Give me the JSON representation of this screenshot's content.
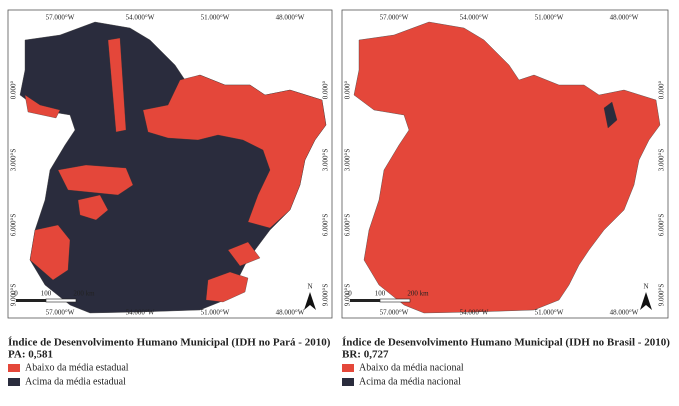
{
  "maps": [
    {
      "top_labels": [
        "57.000°W",
        "54.000°W",
        "51.000°W",
        "48.000°W"
      ],
      "bottom_labels": [
        "57.000°W",
        "54.000°W",
        "51.000°W",
        "48.000°W"
      ],
      "left_labels": [
        "0.000°",
        "3.000°S",
        "6.000°S",
        "9.000°S"
      ],
      "right_labels": [
        "0.000°",
        "3.000°S",
        "6.000°S",
        "9.000°S"
      ],
      "scale_labels": [
        "0",
        "100",
        "200 km"
      ],
      "north": "N",
      "title": "Índice de Desenvolvimento Humano Municipal (IDH no Pará - 2010)",
      "subtitle": "PA: 0,581",
      "legend": [
        {
          "label": "Abaixo da média estadual",
          "color": "#e4473a"
        },
        {
          "label": "Acima da média estadual",
          "color": "#2a2c3d"
        }
      ]
    },
    {
      "top_labels": [
        "57.000°W",
        "54.000°W",
        "51.000°W",
        "48.000°W"
      ],
      "bottom_labels": [
        "57.000°W",
        "54.000°W",
        "51.000°W",
        "48.000°W"
      ],
      "left_labels": [
        "0.000°",
        "3.000°S",
        "6.000°S",
        "9.000°S"
      ],
      "right_labels": [
        "0.000°",
        "3.000°S",
        "6.000°S",
        "9.000°S"
      ],
      "scale_labels": [
        "0",
        "100",
        "200 km"
      ],
      "north": "N",
      "title": "Índice de Desenvolvimento Humano Municipal (IDH no Brasil - 2010)",
      "subtitle": "BR: 0,727",
      "legend": [
        {
          "label": "Abaixo da média nacional",
          "color": "#e4473a"
        },
        {
          "label": "Acima da média nacional",
          "color": "#2a2c3d"
        }
      ]
    }
  ]
}
